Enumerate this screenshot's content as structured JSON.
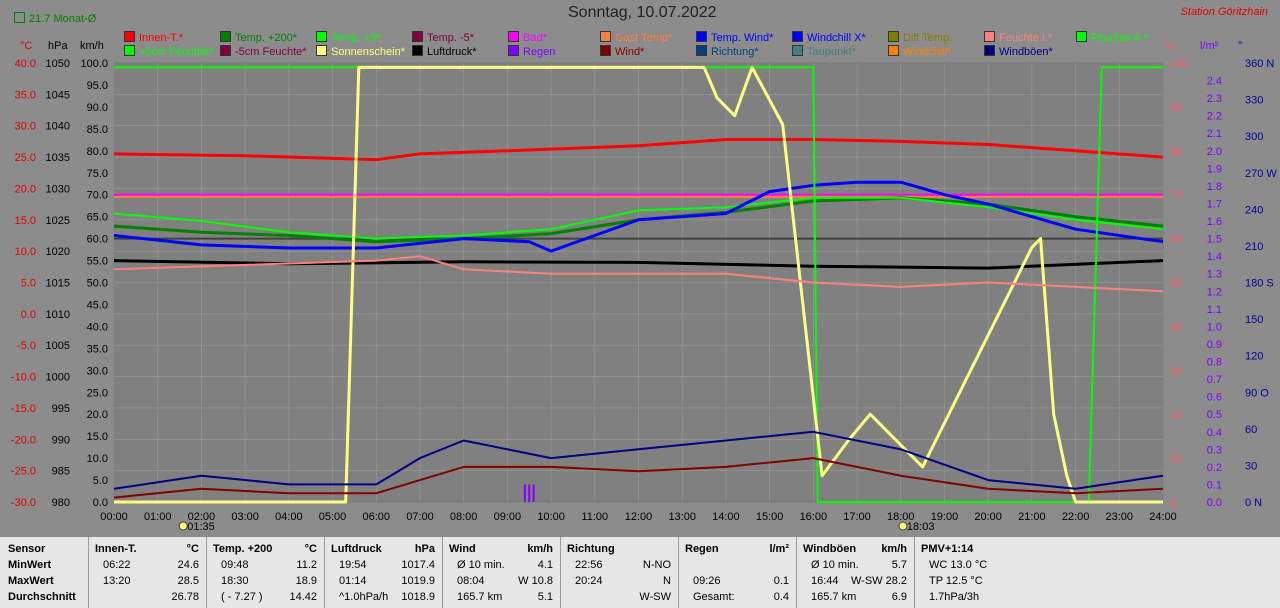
{
  "header": {
    "title": "Sonntag, 10.07.2022",
    "station": "Station Göritzhain",
    "avg_label": "21.7 Monat-Ø"
  },
  "units": {
    "celsius": "°C",
    "hpa": "hPa",
    "kmh": "km/h",
    "percent": "%",
    "lm2": "l/m²",
    "degree": "°"
  },
  "legend": [
    {
      "label": "Innen-T.*",
      "color": "#ff0000"
    },
    {
      "label": "Temp. +200*",
      "color": "#008000"
    },
    {
      "label": "Temp. +5*",
      "color": "#00ff00"
    },
    {
      "label": "Temp. -5*",
      "color": "#800040"
    },
    {
      "label": "Bad*",
      "color": "#ff00ff"
    },
    {
      "label": "Gast Temp*",
      "color": "#ff8040"
    },
    {
      "label": "Temp. Wind*",
      "color": "#0000ff"
    },
    {
      "label": "Windchill X*",
      "color": "#0000ff"
    },
    {
      "label": "Diff Temp.",
      "color": "#808000"
    },
    {
      "label": "Feuchte I.*",
      "color": "#ff8080"
    },
    {
      "label": "Feuchte A.*",
      "color": "#00ff00"
    },
    {
      "label": "+5cm Feuchte*",
      "color": "#00ff00"
    },
    {
      "label": "-5cm Feuchte*",
      "color": "#800040"
    },
    {
      "label": "Sonnenschein*",
      "color": "#ffff80"
    },
    {
      "label": "Luftdruck*",
      "color": "#000000"
    },
    {
      "label": "Regen",
      "color": "#8000ff"
    },
    {
      "label": "Wind*",
      "color": "#800000"
    },
    {
      "label": "Richtung*",
      "color": "#004080"
    },
    {
      "label": "Taupunkt*",
      "color": "#408080"
    },
    {
      "label": "Windchill*",
      "color": "#ff8000"
    },
    {
      "label": "Windböen*",
      "color": "#000080"
    }
  ],
  "chart_data": {
    "type": "line",
    "title": "Sonntag, 10.07.2022",
    "x_ticks": [
      "00:00",
      "01:00",
      "02:00",
      "03:00",
      "04:00",
      "05:00",
      "06:00",
      "07:00",
      "08:00",
      "09:00",
      "10:00",
      "11:00",
      "12:00",
      "13:00",
      "14:00",
      "15:00",
      "16:00",
      "17:00",
      "18:00",
      "19:00",
      "20:00",
      "21:00",
      "22:00",
      "23:00",
      "24:00"
    ],
    "sunrise": "01:35",
    "sunset": "18:03",
    "axes": {
      "temp_c": [
        "40.0",
        "35.0",
        "30.0",
        "25.0",
        "20.0",
        "15.0",
        "10.0",
        "5.0",
        "0.0",
        "-5.0",
        "-10.0",
        "-15.0",
        "-20.0",
        "-25.0",
        "-30.0"
      ],
      "pressure_hpa": [
        "1050",
        "1045",
        "1040",
        "1035",
        "1030",
        "1025",
        "1020",
        "1015",
        "1010",
        "1005",
        "1000",
        "995",
        "990",
        "985",
        "980"
      ],
      "wind_kmh": [
        "100.0",
        "95.0",
        "90.0",
        "85.0",
        "80.0",
        "75.0",
        "70.0",
        "65.0",
        "60.0",
        "55.0",
        "50.0",
        "45.0",
        "40.0",
        "35.0",
        "30.0",
        "25.0",
        "20.0",
        "15.0",
        "10.0",
        "5.0",
        "0.0"
      ],
      "percent": [
        "100",
        "90",
        "80",
        "70",
        "60",
        "50",
        "40",
        "30",
        "20",
        "10",
        "0"
      ],
      "rain_lm2": [
        "2.4",
        "2.3",
        "2.2",
        "2.1",
        "2.0",
        "1.9",
        "1.8",
        "1.7",
        "1.6",
        "1.5",
        "1.4",
        "1.3",
        "1.2",
        "1.1",
        "1.0",
        "0.9",
        "0.8",
        "0.7",
        "0.6",
        "0.5",
        "0.4",
        "0.3",
        "0.2",
        "0.1",
        "0.0"
      ],
      "direction_deg": [
        "360 N",
        "330",
        "300",
        "270 W",
        "240",
        "210",
        "180 S",
        "150",
        "120",
        "90 O",
        "60",
        "30",
        "0 N"
      ]
    },
    "series": [
      {
        "name": "Innen-T.*",
        "unit": "°C",
        "x": [
          0,
          3,
          6,
          7,
          9,
          12,
          14,
          16,
          18,
          20,
          22,
          24
        ],
        "y": [
          25.5,
          25.2,
          24.6,
          25.5,
          26.0,
          26.8,
          27.8,
          27.8,
          27.5,
          27.0,
          26.0,
          25.0
        ]
      },
      {
        "name": "Temp. +200*",
        "unit": "°C",
        "x": [
          0,
          2,
          4,
          6,
          8,
          10,
          12,
          14,
          16,
          18,
          20,
          22,
          24
        ],
        "y": [
          14.0,
          13.0,
          12.5,
          11.5,
          12.0,
          12.8,
          15.0,
          16.2,
          18.0,
          18.5,
          17.5,
          15.5,
          14.0
        ]
      },
      {
        "name": "Temp. +5*",
        "unit": "°C",
        "x": [
          0,
          2,
          4,
          6,
          8,
          10,
          12,
          14,
          16,
          18,
          20,
          22,
          24
        ],
        "y": [
          16.0,
          14.8,
          13.0,
          12.0,
          12.5,
          13.5,
          16.5,
          17.0,
          18.5,
          18.5,
          17.0,
          15.0,
          13.5
        ]
      },
      {
        "name": "Temp. Wind*",
        "unit": "°C",
        "x": [
          0,
          2,
          4,
          6,
          8,
          9.5,
          10,
          12,
          14,
          15,
          16,
          17,
          18,
          19,
          20,
          22,
          24
        ],
        "y": [
          12.5,
          11.0,
          10.5,
          10.5,
          12.0,
          11.5,
          10.0,
          15.0,
          16.0,
          19.5,
          20.5,
          21.0,
          21.0,
          19.0,
          17.5,
          13.5,
          11.5
        ]
      },
      {
        "name": "Luftdruck*",
        "unit": "hPa",
        "x": [
          0,
          4,
          8,
          12,
          16,
          20,
          24
        ],
        "y": [
          1018.5,
          1018.0,
          1018.3,
          1018.2,
          1017.6,
          1017.3,
          1018.5
        ]
      },
      {
        "name": "Feuchte A.*",
        "unit": "%",
        "x": [
          0,
          16,
          16.1,
          22.3,
          22.6,
          24
        ],
        "y": [
          99,
          99,
          0,
          0,
          99,
          99
        ]
      },
      {
        "name": "Sonnenschein*",
        "unit": "%",
        "x": [
          0,
          5.3,
          5.6,
          13.5,
          13.8,
          14.2,
          14.6,
          15.3,
          16.2,
          16.8,
          17.3,
          18.5,
          19.5,
          21,
          21.2,
          21.5,
          21.8,
          22,
          24
        ],
        "y": [
          0,
          0,
          99,
          99,
          92,
          88,
          99,
          86,
          6,
          14,
          20,
          8,
          28,
          58,
          60,
          20,
          6,
          0,
          0
        ]
      },
      {
        "name": "Feuchte I.*",
        "unit": "%",
        "x": [
          0,
          3,
          6,
          7,
          8,
          10,
          14,
          16,
          18,
          20,
          22,
          24
        ],
        "y": [
          53,
          54,
          55,
          56,
          53,
          52,
          52,
          50,
          49,
          50,
          49,
          48
        ]
      },
      {
        "name": "Wind*",
        "unit": "km/h",
        "x": [
          0,
          2,
          4,
          6,
          7,
          8,
          10,
          12,
          14,
          16,
          18,
          20,
          22,
          24
        ],
        "y": [
          1,
          3,
          2,
          2,
          5,
          8,
          8,
          7,
          8,
          10,
          6,
          3,
          2,
          3
        ]
      },
      {
        "name": "Windböen*",
        "unit": "km/h",
        "x": [
          0,
          2,
          4,
          6,
          7,
          8,
          10,
          12,
          14,
          16,
          18,
          20,
          22,
          24
        ],
        "y": [
          3,
          6,
          4,
          4,
          10,
          14,
          10,
          12,
          14,
          16,
          12,
          5,
          3,
          6
        ]
      },
      {
        "name": "Regen",
        "unit": "l/m²",
        "x": [
          9.4,
          9.5,
          9.6
        ],
        "y": [
          0.1,
          0.1,
          0.1
        ]
      }
    ]
  },
  "table": {
    "sensor": {
      "header": "Sensor",
      "rows": [
        "MinWert",
        "MaxWert",
        "Durchschnitt"
      ]
    },
    "groups": [
      {
        "title": "Innen-T.",
        "unit": "°C",
        "rows": [
          [
            "06:22",
            "24.6"
          ],
          [
            "13:20",
            "28.5"
          ],
          [
            "",
            "26.78"
          ]
        ]
      },
      {
        "title": "Temp. +200",
        "unit": "°C",
        "rows": [
          [
            "09:48",
            "11.2"
          ],
          [
            "18:30",
            "18.9"
          ],
          [
            "( - 7.27 )",
            "14.42"
          ]
        ]
      },
      {
        "title": "Luftdruck",
        "unit": "hPa",
        "rows": [
          [
            "19:54",
            "1017.4"
          ],
          [
            "01:14",
            "1019.9"
          ],
          [
            "^1.0hPa/h",
            "1018.9"
          ]
        ]
      },
      {
        "title": "Wind",
        "unit": "km/h",
        "rows": [
          [
            "Ø 10 min.",
            "4.1"
          ],
          [
            "08:04",
            "W 10.8"
          ],
          [
            "165.7 km",
            "5.1"
          ]
        ]
      },
      {
        "title": "Richtung",
        "unit": "",
        "rows": [
          [
            "22:56",
            "N-NO"
          ],
          [
            "20:24",
            "N"
          ],
          [
            "",
            "W-SW"
          ]
        ]
      },
      {
        "title": "Regen",
        "unit": "l/m²",
        "rows": [
          [
            "",
            ""
          ],
          [
            "09:26",
            "0.1"
          ],
          [
            "Gesamt:",
            "0.4"
          ]
        ]
      },
      {
        "title": "Windböen",
        "unit": "km/h",
        "rows": [
          [
            "Ø 10 min.",
            "5.7"
          ],
          [
            "16:44",
            "W-SW 28.2"
          ],
          [
            "165.7 km",
            "6.9"
          ]
        ]
      },
      {
        "title": "PMV+1:14",
        "unit": "",
        "rows": [
          [
            "WC 13.0 °C",
            ""
          ],
          [
            "TP 12.5 °C",
            ""
          ],
          [
            "1.7hPa/3h",
            ""
          ]
        ]
      }
    ]
  }
}
